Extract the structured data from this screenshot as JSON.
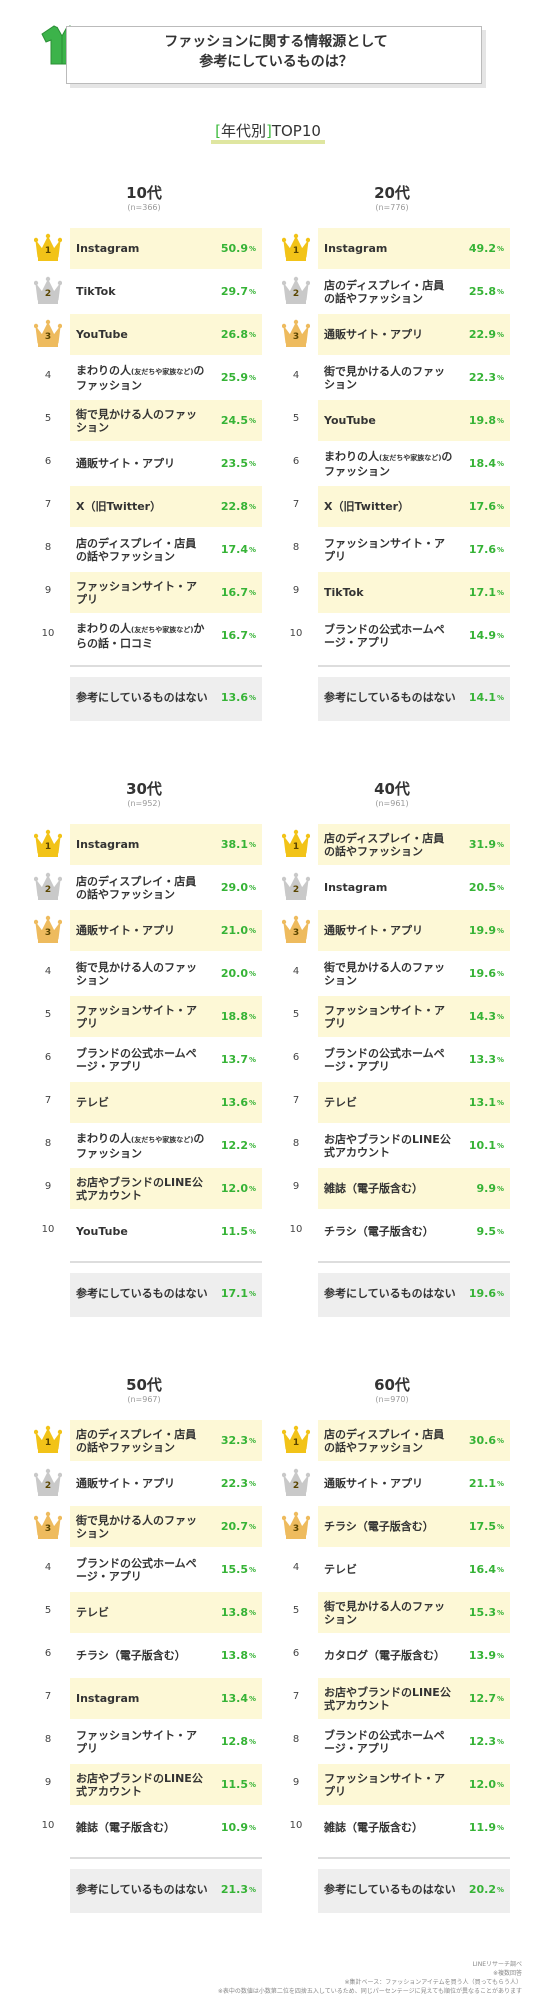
{
  "header": {
    "title": "ファッションに関する情報源として\n参考にしているものは？",
    "icon": "green-shirt-icon"
  },
  "subtitle": {
    "bracket_left": "[",
    "bracket_text": "年代別",
    "bracket_right": "]",
    "rest": "TOP10"
  },
  "colors": {
    "pct": "#36b336",
    "highlight": "#fdf8d6",
    "gold": "#f2c318",
    "silver": "#c9c9c9",
    "bronze": "#eebb5e",
    "none_bg": "#eeeeee"
  },
  "chart_data": [
    {
      "type": "table",
      "age": "10代",
      "n": "(n=366)",
      "items": [
        {
          "rank": "1",
          "label": "Instagram",
          "value": "50.9"
        },
        {
          "rank": "2",
          "label": "TikTok",
          "value": "29.7"
        },
        {
          "rank": "3",
          "label": "YouTube",
          "value": "26.8"
        },
        {
          "rank": "4",
          "label": "まわりの人(友だちや家族など)のファッション",
          "value": "25.9"
        },
        {
          "rank": "5",
          "label": "街で見かける人のファッション",
          "value": "24.5"
        },
        {
          "rank": "6",
          "label": "通販サイト・アプリ",
          "value": "23.5"
        },
        {
          "rank": "7",
          "label": "X（旧Twitter）",
          "value": "22.8"
        },
        {
          "rank": "8",
          "label": "店のディスプレイ・店員の話やファッション",
          "value": "17.4"
        },
        {
          "rank": "9",
          "label": "ファッションサイト・アプリ",
          "value": "16.7"
        },
        {
          "rank": "10",
          "label": "まわりの人(友だちや家族など)からの話・口コミ",
          "value": "16.7"
        }
      ],
      "none": {
        "label": "参考にしているものはない",
        "value": "13.6"
      }
    },
    {
      "type": "table",
      "age": "20代",
      "n": "(n=776)",
      "items": [
        {
          "rank": "1",
          "label": "Instagram",
          "value": "49.2"
        },
        {
          "rank": "2",
          "label": "店のディスプレイ・店員の話やファッション",
          "value": "25.8"
        },
        {
          "rank": "3",
          "label": "通販サイト・アプリ",
          "value": "22.9"
        },
        {
          "rank": "4",
          "label": "街で見かける人のファッション",
          "value": "22.3"
        },
        {
          "rank": "5",
          "label": "YouTube",
          "value": "19.8"
        },
        {
          "rank": "6",
          "label": "まわりの人(友だちや家族など)のファッション",
          "value": "18.4"
        },
        {
          "rank": "7",
          "label": "X（旧Twitter）",
          "value": "17.6"
        },
        {
          "rank": "8",
          "label": "ファッションサイト・アプリ",
          "value": "17.6"
        },
        {
          "rank": "9",
          "label": "TikTok",
          "value": "17.1"
        },
        {
          "rank": "10",
          "label": "ブランドの公式ホームページ・アプリ",
          "value": "14.9"
        }
      ],
      "none": {
        "label": "参考にしているものはない",
        "value": "14.1"
      }
    },
    {
      "type": "table",
      "age": "30代",
      "n": "(n=952)",
      "items": [
        {
          "rank": "1",
          "label": "Instagram",
          "value": "38.1"
        },
        {
          "rank": "2",
          "label": "店のディスプレイ・店員の話やファッション",
          "value": "29.0"
        },
        {
          "rank": "3",
          "label": "通販サイト・アプリ",
          "value": "21.0"
        },
        {
          "rank": "4",
          "label": "街で見かける人のファッション",
          "value": "20.0"
        },
        {
          "rank": "5",
          "label": "ファッションサイト・アプリ",
          "value": "18.8"
        },
        {
          "rank": "6",
          "label": "ブランドの公式ホームページ・アプリ",
          "value": "13.7"
        },
        {
          "rank": "7",
          "label": "テレビ",
          "value": "13.6"
        },
        {
          "rank": "8",
          "label": "まわりの人(友だちや家族など)のファッション",
          "value": "12.2"
        },
        {
          "rank": "9",
          "label": "お店やブランドのLINE公式アカウント",
          "value": "12.0"
        },
        {
          "rank": "10",
          "label": "YouTube",
          "value": "11.5"
        }
      ],
      "none": {
        "label": "参考にしているものはない",
        "value": "17.1"
      }
    },
    {
      "type": "table",
      "age": "40代",
      "n": "(n=961)",
      "items": [
        {
          "rank": "1",
          "label": "店のディスプレイ・店員の話やファッション",
          "value": "31.9"
        },
        {
          "rank": "2",
          "label": "Instagram",
          "value": "20.5"
        },
        {
          "rank": "3",
          "label": "通販サイト・アプリ",
          "value": "19.9"
        },
        {
          "rank": "4",
          "label": "街で見かける人のファッション",
          "value": "19.6"
        },
        {
          "rank": "5",
          "label": "ファッションサイト・アプリ",
          "value": "14.3"
        },
        {
          "rank": "6",
          "label": "ブランドの公式ホームページ・アプリ",
          "value": "13.3"
        },
        {
          "rank": "7",
          "label": "テレビ",
          "value": "13.1"
        },
        {
          "rank": "8",
          "label": "お店やブランドのLINE公式アカウント",
          "value": "10.1"
        },
        {
          "rank": "9",
          "label": "雑誌（電子版含む）",
          "value": "9.9"
        },
        {
          "rank": "10",
          "label": "チラシ（電子版含む）",
          "value": "9.5"
        }
      ],
      "none": {
        "label": "参考にしているものはない",
        "value": "19.6"
      }
    },
    {
      "type": "table",
      "age": "50代",
      "n": "(n=967)",
      "items": [
        {
          "rank": "1",
          "label": "店のディスプレイ・店員の話やファッション",
          "value": "32.3"
        },
        {
          "rank": "2",
          "label": "通販サイト・アプリ",
          "value": "22.3"
        },
        {
          "rank": "3",
          "label": "街で見かける人のファッション",
          "value": "20.7"
        },
        {
          "rank": "4",
          "label": "ブランドの公式ホームページ・アプリ",
          "value": "15.5"
        },
        {
          "rank": "5",
          "label": "テレビ",
          "value": "13.8"
        },
        {
          "rank": "6",
          "label": "チラシ（電子版含む）",
          "value": "13.8"
        },
        {
          "rank": "7",
          "label": "Instagram",
          "value": "13.4"
        },
        {
          "rank": "8",
          "label": "ファッションサイト・アプリ",
          "value": "12.8"
        },
        {
          "rank": "9",
          "label": "お店やブランドのLINE公式アカウント",
          "value": "11.5"
        },
        {
          "rank": "10",
          "label": "雑誌（電子版含む）",
          "value": "10.9"
        }
      ],
      "none": {
        "label": "参考にしているものはない",
        "value": "21.3"
      }
    },
    {
      "type": "table",
      "age": "60代",
      "n": "(n=970)",
      "items": [
        {
          "rank": "1",
          "label": "店のディスプレイ・店員の話やファッション",
          "value": "30.6"
        },
        {
          "rank": "2",
          "label": "通販サイト・アプリ",
          "value": "21.1"
        },
        {
          "rank": "3",
          "label": "チラシ（電子版含む）",
          "value": "17.5"
        },
        {
          "rank": "4",
          "label": "テレビ",
          "value": "16.4"
        },
        {
          "rank": "5",
          "label": "街で見かける人のファッション",
          "value": "15.3"
        },
        {
          "rank": "6",
          "label": "カタログ（電子版含む）",
          "value": "13.9"
        },
        {
          "rank": "7",
          "label": "お店やブランドのLINE公式アカウント",
          "value": "12.7"
        },
        {
          "rank": "8",
          "label": "ブランドの公式ホームページ・アプリ",
          "value": "12.3"
        },
        {
          "rank": "9",
          "label": "ファッションサイト・アプリ",
          "value": "12.0"
        },
        {
          "rank": "10",
          "label": "雑誌（電子版含む）",
          "value": "11.9"
        }
      ],
      "none": {
        "label": "参考にしているものはない",
        "value": "20.2"
      }
    }
  ],
  "footer": {
    "line1": "LINEリサーチ調べ",
    "line2": "※複数回答",
    "line3": "※集計ベース：ファッションアイテムを買う人（買ってもらう人）",
    "line4": "※表中の数値は小数第二位を四捨五入しているため、同じパーセンテージに見えても順位が異なることがあります"
  }
}
